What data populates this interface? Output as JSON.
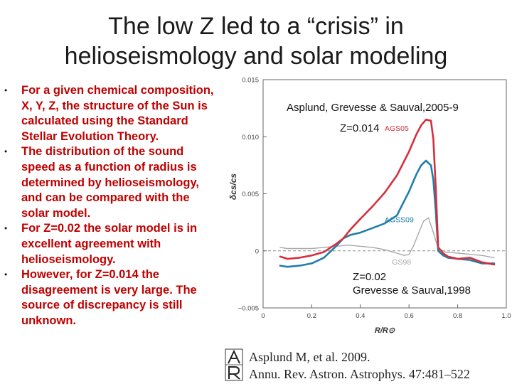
{
  "slide": {
    "title_line1": "The low Z led to a “crisis” in",
    "title_line2": "helioseismology and  solar modeling"
  },
  "bullets": [
    "For a given chemical composition, X, Y, Z, the structure of the Sun is calculated using the Standard Stellar Evolution Theory.",
    "The distribution of the sound speed as a function of radius is determined by helioseismology, and can be compared with the solar model.",
    "For Z=0.02 the solar model is in excellent agreement with helioseismology.",
    "However, for Z=0.014 the disagreement is very large. The source of discrepancy is still unknown."
  ],
  "bullet_glyph": "•",
  "overlays": {
    "ags_ref": "Asplund, Grevesse & Sauval,2005-9",
    "z_low": "Z=0.014",
    "z_high": "Z=0.02",
    "gs_ref": "Grevesse & Sauval,1998"
  },
  "citation": {
    "line1": "Asplund M, et al. 2009.",
    "line2": "Annu. Rev. Astron. Astrophys. 47:481–522",
    "logo_letters": "AR"
  },
  "chart_data": {
    "type": "line",
    "xlabel": "R/R⊙",
    "ylabel": "δcs/cs",
    "xlim": [
      0,
      1
    ],
    "ylim": [
      -0.005,
      0.015
    ],
    "xticks": [
      0,
      0.2,
      0.4,
      0.6,
      0.8,
      1.0
    ],
    "xtick_labels": [
      "0",
      "0.2",
      "0.4",
      "0.6",
      "0.8",
      "1.0"
    ],
    "yticks": [
      -0.005,
      0,
      0.005,
      0.01,
      0.015
    ],
    "ytick_labels": [
      "−0.005",
      "0",
      "0.005",
      "0.010",
      "0.015"
    ],
    "zero_line": "dashed",
    "series": [
      {
        "name": "AGS05",
        "color": "#d62f3c",
        "x": [
          0.07,
          0.1,
          0.15,
          0.2,
          0.25,
          0.3,
          0.33,
          0.36,
          0.4,
          0.45,
          0.5,
          0.55,
          0.6,
          0.63,
          0.65,
          0.67,
          0.69,
          0.7,
          0.71,
          0.72,
          0.74,
          0.76,
          0.8,
          0.85,
          0.9,
          0.95
        ],
        "y": [
          -0.0005,
          -0.0007,
          -0.0006,
          -0.0004,
          -0.0001,
          0.0006,
          0.0011,
          0.0019,
          0.0028,
          0.0039,
          0.0051,
          0.0066,
          0.0087,
          0.0102,
          0.011,
          0.0115,
          0.0114,
          0.0098,
          0.0055,
          0.0003,
          -0.0002,
          -0.0005,
          -0.0007,
          -0.0006,
          -0.001,
          -0.0012
        ]
      },
      {
        "name": "AGSS09",
        "color": "#1f7fa8",
        "x": [
          0.07,
          0.1,
          0.15,
          0.2,
          0.25,
          0.3,
          0.33,
          0.36,
          0.4,
          0.45,
          0.5,
          0.55,
          0.6,
          0.63,
          0.65,
          0.67,
          0.69,
          0.7,
          0.71,
          0.72,
          0.74,
          0.76,
          0.8,
          0.85,
          0.9,
          0.95
        ],
        "y": [
          -0.0013,
          -0.0014,
          -0.0013,
          -0.0011,
          -0.0006,
          0.0004,
          0.0011,
          0.0014,
          0.0016,
          0.002,
          0.0024,
          0.0031,
          0.0052,
          0.0067,
          0.0075,
          0.0079,
          0.0075,
          0.0062,
          0.0035,
          0.0,
          -0.0004,
          -0.0006,
          -0.0007,
          -0.0008,
          -0.0011,
          -0.0011
        ]
      },
      {
        "name": "GS98",
        "color": "#a8a8a8",
        "x": [
          0.07,
          0.1,
          0.15,
          0.2,
          0.25,
          0.3,
          0.35,
          0.4,
          0.45,
          0.5,
          0.55,
          0.58,
          0.6,
          0.62,
          0.64,
          0.66,
          0.68,
          0.7,
          0.72,
          0.75,
          0.8,
          0.85,
          0.9,
          0.95
        ],
        "y": [
          0.0003,
          0.0002,
          0.0002,
          0.0002,
          0.0003,
          0.0004,
          0.0005,
          0.0004,
          0.0003,
          0.0001,
          -0.0002,
          -0.0004,
          -0.0003,
          0.0005,
          0.0016,
          0.0026,
          0.0029,
          0.0016,
          0.0002,
          -0.0001,
          -0.0002,
          -0.0003,
          -0.0004,
          -0.0006
        ]
      }
    ],
    "series_label_positions": [
      {
        "name": "AGS05",
        "x": 0.5,
        "y": 0.0105
      },
      {
        "name": "AGSS09",
        "x": 0.5,
        "y": 0.0025
      },
      {
        "name": "GS98",
        "x": 0.53,
        "y": -0.0012
      }
    ]
  }
}
